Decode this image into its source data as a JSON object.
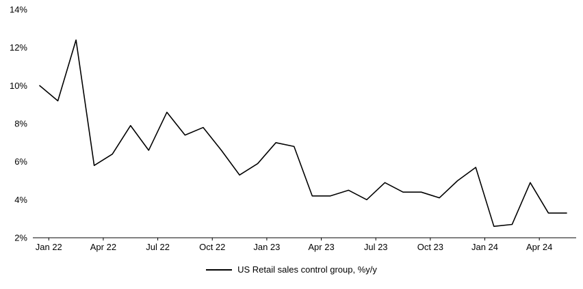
{
  "chart_data": {
    "type": "line",
    "title": "",
    "x": [
      "Jan 22",
      "Feb 22",
      "Mar 22",
      "Apr 22",
      "May 22",
      "Jun 22",
      "Jul 22",
      "Aug 22",
      "Sep 22",
      "Oct 22",
      "Nov 22",
      "Dec 22",
      "Jan 23",
      "Feb 23",
      "Mar 23",
      "Apr 23",
      "May 23",
      "Jun 23",
      "Jul 23",
      "Aug 23",
      "Sep 23",
      "Oct 23",
      "Nov 23",
      "Dec 23",
      "Jan 24",
      "Feb 24",
      "Mar 24",
      "Apr 24",
      "May 24",
      "Jun 24"
    ],
    "series": [
      {
        "name": "US Retail sales control group, %y/y",
        "color": "#000000",
        "values": [
          10.0,
          9.2,
          12.4,
          5.8,
          6.4,
          7.9,
          6.6,
          8.6,
          7.4,
          7.8,
          6.6,
          5.3,
          5.9,
          7.0,
          6.8,
          4.2,
          4.2,
          4.5,
          4.0,
          4.9,
          4.4,
          4.4,
          4.1,
          5.0,
          5.7,
          2.6,
          2.7,
          4.9,
          3.3,
          3.3
        ]
      }
    ],
    "xlabel": "",
    "ylabel": "",
    "ylim": [
      2,
      14
    ],
    "ytick_step": 2,
    "ytick_suffix": "%",
    "xtick_every": 3,
    "xtick_labels": [
      "Jan 22",
      "Apr 22",
      "Jul 22",
      "Oct 22",
      "Jan 23",
      "Apr 23",
      "Jul 23",
      "Oct 23",
      "Jan 24",
      "Apr 24"
    ],
    "grid": false,
    "legend_position": "bottom"
  }
}
